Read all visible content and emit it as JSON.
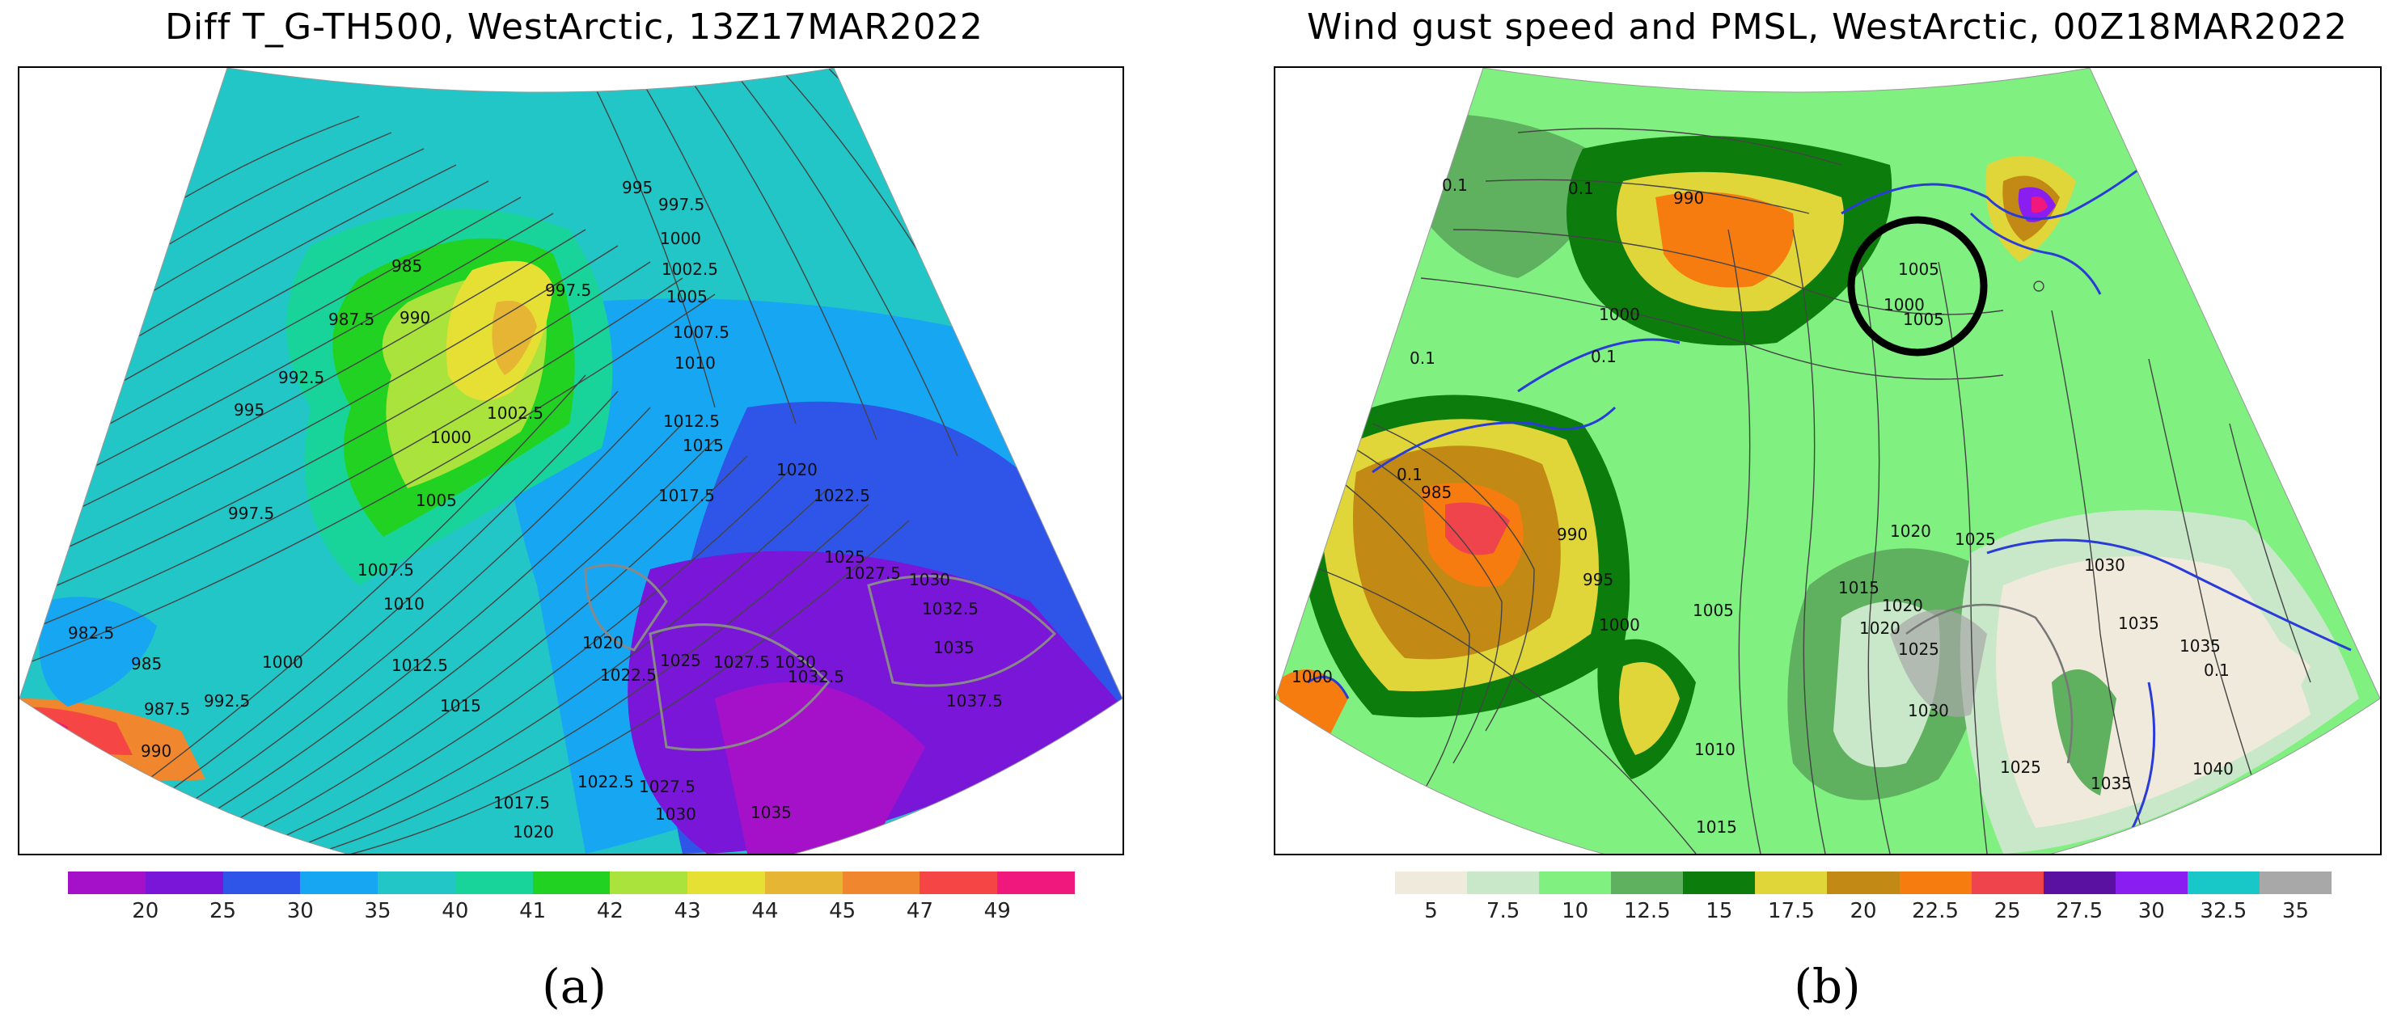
{
  "panels": [
    {
      "title": "Diff T_G-TH500, WestArctic, 13Z17MAR2022",
      "letter": "(a)",
      "isobar_labels": [
        "995",
        "997.5",
        "1000",
        "985",
        "1002.5",
        "1005",
        "997.5",
        "990",
        "987.5",
        "1007.5",
        "1010",
        "992.5",
        "1012.5",
        "1015",
        "995",
        "1002.5",
        "1000",
        "1020",
        "1017.5",
        "1022.5",
        "997.5",
        "1005",
        "1025",
        "1027.5",
        "1030",
        "1032.5",
        "1007.5",
        "1010",
        "1035",
        "982.5",
        "1000",
        "1012.5",
        "1020",
        "1025",
        "1027.5",
        "1030",
        "985",
        "1022.5",
        "1032.5",
        "987.5",
        "992.5",
        "1015",
        "1037.5",
        "990",
        "1017.5",
        "1022.5",
        "1027.5",
        "1035",
        "1020",
        "1030"
      ],
      "legend": {
        "colors": [
          "#a511c8",
          "#7a16d8",
          "#2f55e8",
          "#17a6f2",
          "#22c6c6",
          "#18d49a",
          "#22d222",
          "#a9e33b",
          "#e6e035",
          "#e6b534",
          "#f0862e",
          "#f54545",
          "#f0187c"
        ],
        "ticks": [
          "20",
          "25",
          "30",
          "35",
          "40",
          "41",
          "42",
          "43",
          "44",
          "45",
          "47",
          "49"
        ]
      }
    },
    {
      "title": "Wind gust speed and PMSL, WestArctic, 00Z18MAR2022",
      "letter": "(b)",
      "isobar_labels": [
        "990",
        "1005",
        "1000",
        "0.1",
        "0.1",
        "0.1",
        "0.1",
        "1000",
        "1005",
        "985",
        "990",
        "995",
        "1000",
        "1005",
        "0.1",
        "1010",
        "1015",
        "1020",
        "1025",
        "1020",
        "1025",
        "1030",
        "1030",
        "1035",
        "1035",
        "0.1",
        "1040",
        "1015",
        "1020",
        "1025",
        "1035",
        "1000"
      ],
      "legend": {
        "colors": [
          "#efeadb",
          "#c9e8c9",
          "#80f080",
          "#5fb05f",
          "#0c7d0c",
          "#e0d63a",
          "#c28a14",
          "#f77c10",
          "#f0444c",
          "#5a10a0",
          "#8a1ef0",
          "#18c8c8",
          "#a8a8a8"
        ],
        "ticks": [
          "5",
          "7.5",
          "10",
          "12.5",
          "15",
          "17.5",
          "20",
          "22.5",
          "25",
          "27.5",
          "30",
          "32.5",
          "35"
        ]
      }
    }
  ]
}
